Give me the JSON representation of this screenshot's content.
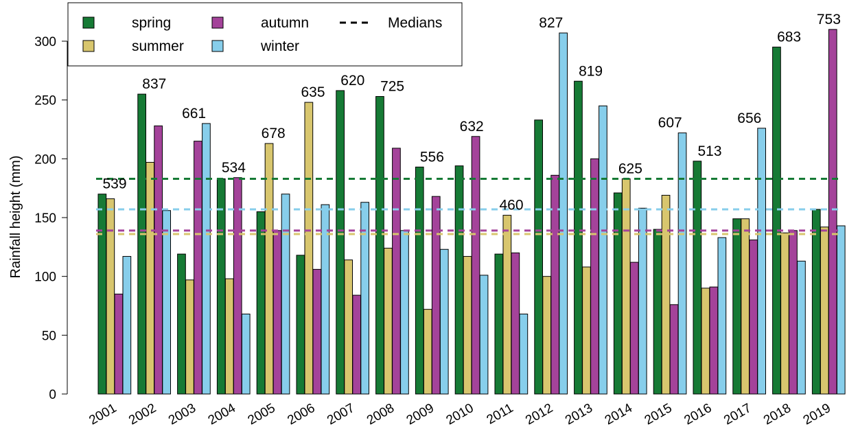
{
  "chart_data": {
    "type": "bar",
    "title": "",
    "xlabel": "",
    "ylabel": "Rainfall height (mm)",
    "ylim": [
      0,
      320
    ],
    "yticks": [
      0,
      50,
      100,
      150,
      200,
      250,
      300
    ],
    "grid": false,
    "legend_position": "top-left",
    "categories": [
      "2001",
      "2002",
      "2003",
      "2004",
      "2005",
      "2006",
      "2007",
      "2008",
      "2009",
      "2010",
      "2011",
      "2012",
      "2013",
      "2014",
      "2015",
      "2016",
      "2017",
      "2018",
      "2019"
    ],
    "series": [
      {
        "name": "spring",
        "color": "#167A35",
        "values": [
          170,
          255,
          119,
          183,
          155,
          118,
          258,
          253,
          193,
          194,
          119,
          233,
          266,
          171,
          140,
          198,
          149,
          295,
          157
        ]
      },
      {
        "name": "summer",
        "color": "#D8C66E",
        "values": [
          166,
          197,
          97,
          98,
          213,
          248,
          114,
          124,
          72,
          117,
          152,
          100,
          108,
          183,
          169,
          90,
          149,
          137,
          142
        ]
      },
      {
        "name": "autumn",
        "color": "#A4439A",
        "values": [
          85,
          228,
          215,
          184,
          139,
          106,
          84,
          209,
          168,
          219,
          120,
          186,
          200,
          112,
          76,
          91,
          131,
          139,
          310
        ]
      },
      {
        "name": "winter",
        "color": "#87CEEB",
        "values": [
          117,
          156,
          230,
          68,
          170,
          161,
          163,
          139,
          123,
          101,
          68,
          307,
          245,
          158,
          222,
          133,
          226,
          113,
          143
        ]
      }
    ],
    "annual_totals": [
      "539",
      "837",
      "661",
      "534",
      "678",
      "635",
      "620",
      "725",
      "556",
      "632",
      "460",
      "827",
      "819",
      "625",
      "607",
      "513",
      "656",
      "683",
      "753"
    ],
    "medians": [
      {
        "series": "spring",
        "value": 183,
        "color": "#167A35"
      },
      {
        "series": "winter",
        "value": 157,
        "color": "#87CEEB"
      },
      {
        "series": "autumn",
        "value": 139,
        "color": "#A4439A"
      },
      {
        "series": "summer",
        "value": 136,
        "color": "#D8C66E"
      }
    ],
    "legend": {
      "entries": [
        {
          "label": "spring",
          "color": "#167A35",
          "kind": "box"
        },
        {
          "label": "summer",
          "color": "#D8C66E",
          "kind": "box"
        },
        {
          "label": "autumn",
          "color": "#A4439A",
          "kind": "box"
        },
        {
          "label": "winter",
          "color": "#87CEEB",
          "kind": "box"
        },
        {
          "label": "Medians",
          "color": "#000000",
          "kind": "dashed-line"
        }
      ]
    }
  }
}
